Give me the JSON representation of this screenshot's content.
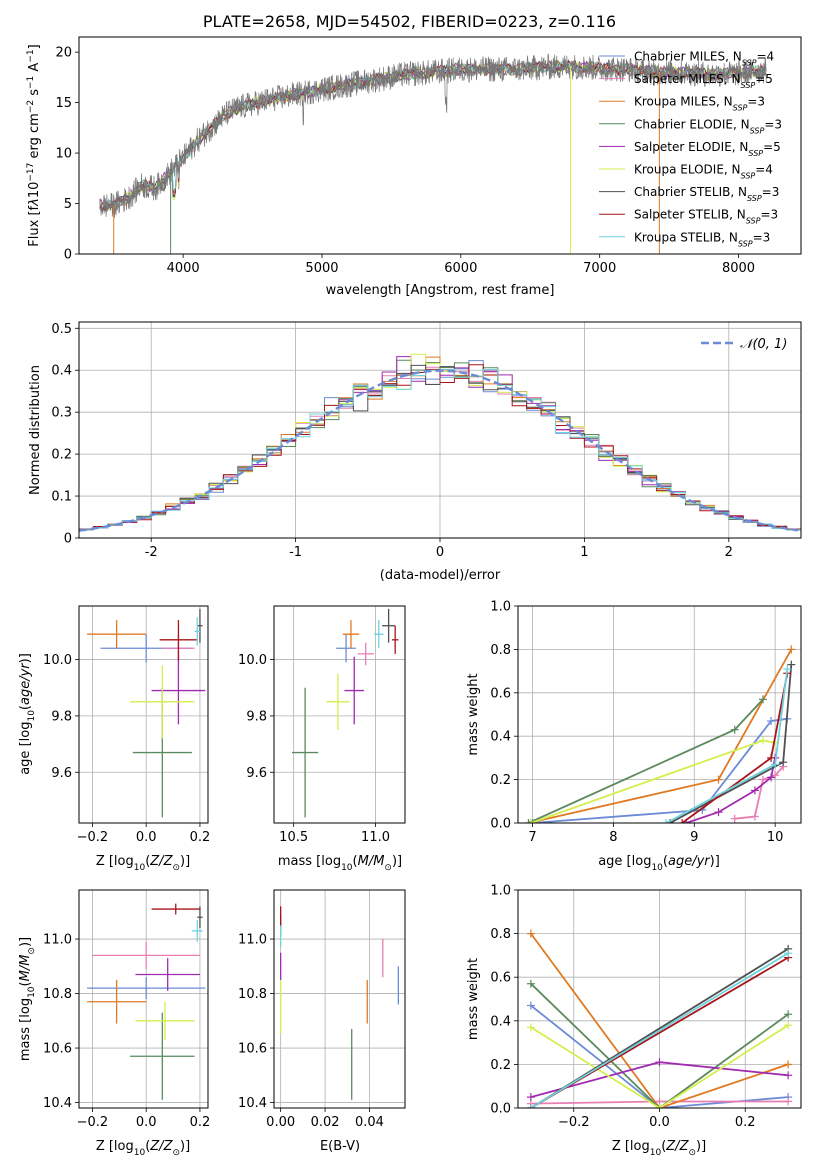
{
  "figure": {
    "title": "PLATE=2658, MJD=54502, FIBERID=0223, z=0.116"
  },
  "colors": {
    "Chabrier MILES": "#6b8bd6",
    "Salpeter MILES": "#e87eb4",
    "Kroupa MILES": "#e07a22",
    "Chabrier ELODIE": "#5a8a5e",
    "Salpeter ELODIE": "#a02ab0",
    "Kroupa ELODIE": "#d4ee4e",
    "Chabrier STELIB": "#505050",
    "Salpeter STELIB": "#a8141a",
    "Kroupa STELIB": "#6fd3dd"
  },
  "chart_data": [
    {
      "id": "spectrum",
      "type": "line",
      "title": "PLATE=2658, MJD=54502, FIBERID=0223, z=0.116",
      "xlabel": "wavelength [Angstrom, rest frame]",
      "ylabel_parts": [
        "Flux [f",
        "λ",
        "10",
        "−17",
        " erg cm",
        "−2",
        " s",
        "−1",
        " A",
        "−1",
        "]"
      ],
      "xlim": [
        3250,
        8450
      ],
      "ylim": [
        0,
        21.5
      ],
      "xticks": [
        4000,
        5000,
        6000,
        7000,
        8000
      ],
      "yticks": [
        0,
        5,
        10,
        15,
        20
      ],
      "grid": false,
      "legend_position": "upper-right",
      "legend": [
        {
          "name": "Chabrier MILES",
          "n": "4"
        },
        {
          "name": "Salpeter MILES",
          "n": "5"
        },
        {
          "name": "Kroupa MILES",
          "n": "3"
        },
        {
          "name": "Chabrier ELODIE",
          "n": "3"
        },
        {
          "name": "Salpeter ELODIE",
          "n": "5"
        },
        {
          "name": "Kroupa ELODIE",
          "n": "4"
        },
        {
          "name": "Chabrier STELIB",
          "n": "3"
        },
        {
          "name": "Salpeter STELIB",
          "n": "3"
        },
        {
          "name": "Kroupa STELIB",
          "n": "3"
        }
      ],
      "series": [
        {
          "name": "data spectrum (grey)",
          "x": [
            3400,
            3500,
            3600,
            3700,
            3800,
            3900,
            4000,
            4100,
            4200,
            4300,
            4400,
            4600,
            4800,
            5000,
            5200,
            5400,
            5600,
            5800,
            6000,
            6200,
            6400,
            6600,
            6800,
            7000,
            7200,
            7400,
            7600,
            7800,
            8000,
            8200
          ],
          "y": [
            4.8,
            4.8,
            5.5,
            6.8,
            6.5,
            8.0,
            9.5,
            11.2,
            12.5,
            13.8,
            14.5,
            15.2,
            15.8,
            16.3,
            16.8,
            17.3,
            17.8,
            18.0,
            18.3,
            18.3,
            18.3,
            18.5,
            18.6,
            18.4,
            18.3,
            18.0,
            18.0,
            17.8,
            17.9,
            18.2
          ]
        }
      ]
    },
    {
      "id": "residuals",
      "type": "histogram",
      "xlabel": "(data-model)/error",
      "ylabel": "Normed distribution",
      "xlim": [
        -2.5,
        2.5
      ],
      "ylim": [
        0,
        0.515
      ],
      "xticks": [
        -2,
        -1,
        0,
        1,
        2
      ],
      "yticks": [
        0.0,
        0.1,
        0.2,
        0.3,
        0.4,
        0.5
      ],
      "grid": true,
      "legend_position": "upper-right",
      "reference_label": "𝒩(0, 1)",
      "reference_color": "#6b8bd6",
      "bin_width": 0.1
    },
    {
      "id": "age_vs_Z",
      "type": "scatter",
      "xlabel": "Z [log10(Z/Z⊙)]",
      "xlabel_parts": [
        "Z [log",
        "10",
        "(",
        "Z/Z",
        "⊙",
        ")]"
      ],
      "ylabel": "age [log10(age/yr)]",
      "ylabel_parts": [
        "age  [log",
        "10",
        "(",
        "age/yr",
        ")]"
      ],
      "xlim": [
        -0.25,
        0.23
      ],
      "ylim": [
        9.42,
        10.19
      ],
      "xticks": [
        -0.2,
        0.0,
        0.2
      ],
      "xtick_labels": [
        "−0.2",
        "0.0",
        "0.2"
      ],
      "yticks": [
        9.6,
        9.8,
        10.0
      ],
      "ytick_labels": [
        "9.6",
        "9.8",
        "10.0"
      ],
      "grid": true,
      "points": [
        {
          "name": "Chabrier MILES",
          "x": 0.0,
          "xerr": 0.17,
          "y": 10.04,
          "yerr": 0.05
        },
        {
          "name": "Salpeter MILES",
          "x": 0.12,
          "xerr": 0.06,
          "y": 10.04,
          "yerr": 0.05
        },
        {
          "name": "Kroupa MILES",
          "x": -0.11,
          "xerr": 0.11,
          "y": 10.09,
          "yerr": 0.05
        },
        {
          "name": "Chabrier ELODIE",
          "x": 0.06,
          "xerr": 0.11,
          "y": 9.67,
          "yerr": 0.23
        },
        {
          "name": "Salpeter ELODIE",
          "x": 0.12,
          "xerr": 0.1,
          "y": 9.89,
          "yerr": 0.12
        },
        {
          "name": "Kroupa ELODIE",
          "x": 0.06,
          "xerr": 0.12,
          "y": 9.85,
          "yerr": 0.13
        },
        {
          "name": "Chabrier STELIB",
          "x": 0.2,
          "xerr": 0.01,
          "y": 10.12,
          "yerr": 0.06
        },
        {
          "name": "Salpeter STELIB",
          "x": 0.12,
          "xerr": 0.07,
          "y": 10.07,
          "yerr": 0.07
        },
        {
          "name": "Kroupa STELIB",
          "x": 0.19,
          "xerr": 0.01,
          "y": 10.1,
          "yerr": 0.05
        }
      ]
    },
    {
      "id": "age_vs_mass",
      "type": "scatter",
      "xlabel": "mass [log10(M/M⊙)]",
      "xlabel_parts": [
        "mass [log",
        "10",
        "(",
        "M/M",
        "⊙",
        ")]"
      ],
      "xlim": [
        10.38,
        11.18
      ],
      "ylim": [
        9.42,
        10.19
      ],
      "xticks": [
        10.5,
        11.0
      ],
      "xtick_labels": [
        "10.5",
        "11.0"
      ],
      "yticks": [
        9.6,
        9.8,
        10.0
      ],
      "ytick_labels": [
        "9.6",
        "9.8",
        "10.0"
      ],
      "grid": true,
      "points": [
        {
          "name": "Chabrier MILES",
          "x": 10.82,
          "xerr": 0.06,
          "y": 10.04,
          "yerr": 0.05
        },
        {
          "name": "Salpeter MILES",
          "x": 10.94,
          "xerr": 0.05,
          "y": 10.02,
          "yerr": 0.04
        },
        {
          "name": "Kroupa MILES",
          "x": 10.85,
          "xerr": 0.05,
          "y": 10.09,
          "yerr": 0.05
        },
        {
          "name": "Chabrier ELODIE",
          "x": 10.57,
          "xerr": 0.08,
          "y": 9.67,
          "yerr": 0.23
        },
        {
          "name": "Salpeter ELODIE",
          "x": 10.87,
          "xerr": 0.06,
          "y": 9.89,
          "yerr": 0.12
        },
        {
          "name": "Kroupa ELODIE",
          "x": 10.77,
          "xerr": 0.07,
          "y": 9.85,
          "yerr": 0.1
        },
        {
          "name": "Chabrier STELIB",
          "x": 11.08,
          "xerr": 0.04,
          "y": 10.12,
          "yerr": 0.06
        },
        {
          "name": "Salpeter STELIB",
          "x": 11.12,
          "xerr": 0.02,
          "y": 10.07,
          "yerr": 0.05
        },
        {
          "name": "Kroupa STELIB",
          "x": 11.02,
          "xerr": 0.03,
          "y": 10.09,
          "yerr": 0.05
        }
      ]
    },
    {
      "id": "massweight_vs_age",
      "type": "line",
      "xlabel": "age [log10(age/yr)]",
      "xlabel_parts": [
        "age  [log",
        "10",
        "(",
        "age/yr",
        ")]"
      ],
      "ylabel": "mass weight",
      "xlim": [
        6.82,
        10.32
      ],
      "ylim": [
        0,
        1.0
      ],
      "xticks": [
        7,
        8,
        9,
        10
      ],
      "xtick_labels": [
        "7",
        "8",
        "9",
        "10"
      ],
      "yticks": [
        0.0,
        0.2,
        0.4,
        0.6,
        0.8,
        1.0
      ],
      "ytick_labels": [
        "0.0",
        "0.2",
        "0.4",
        "0.6",
        "0.8",
        "1.0"
      ],
      "grid": true,
      "series": [
        {
          "name": "Chabrier MILES",
          "x": [
            7.0,
            9.1,
            9.95,
            10.15
          ],
          "y": [
            0.0,
            0.06,
            0.47,
            0.48
          ]
        },
        {
          "name": "Salpeter MILES",
          "x": [
            9.5,
            9.75,
            9.85,
            10.0,
            10.1
          ],
          "y": [
            0.02,
            0.03,
            0.2,
            0.22,
            0.26
          ]
        },
        {
          "name": "Kroupa MILES",
          "x": [
            6.95,
            9.3,
            10.2
          ],
          "y": [
            0.0,
            0.2,
            0.8
          ]
        },
        {
          "name": "Chabrier ELODIE",
          "x": [
            6.95,
            9.5,
            9.85
          ],
          "y": [
            0.0,
            0.43,
            0.57
          ]
        },
        {
          "name": "Salpeter ELODIE",
          "x": [
            8.9,
            9.3,
            9.75,
            9.95,
            10.0
          ],
          "y": [
            0.0,
            0.05,
            0.15,
            0.21,
            0.3
          ]
        },
        {
          "name": "Kroupa ELODIE",
          "x": [
            6.98,
            9.85,
            10.0
          ],
          "y": [
            0.0,
            0.38,
            0.37
          ]
        },
        {
          "name": "Chabrier STELIB",
          "x": [
            8.7,
            10.1,
            10.2
          ],
          "y": [
            0.0,
            0.28,
            0.73
          ]
        },
        {
          "name": "Salpeter STELIB",
          "x": [
            8.85,
            9.95,
            10.15
          ],
          "y": [
            0.0,
            0.3,
            0.69
          ]
        },
        {
          "name": "Kroupa STELIB",
          "x": [
            8.65,
            10.0,
            10.15
          ],
          "y": [
            0.0,
            0.27,
            0.71
          ]
        }
      ]
    },
    {
      "id": "mass_vs_Z",
      "type": "scatter",
      "xlabel": "Z [log10(Z/Z⊙)]",
      "xlabel_parts": [
        "Z [log",
        "10",
        "(",
        "Z/Z",
        "⊙",
        ")]"
      ],
      "ylabel": "mass [log10(M/M⊙)]",
      "ylabel_parts": [
        "mass [log",
        "10",
        "(",
        "M/M",
        "⊙",
        ")]"
      ],
      "xlim": [
        -0.25,
        0.23
      ],
      "ylim": [
        10.38,
        11.18
      ],
      "xticks": [
        -0.2,
        0.0,
        0.2
      ],
      "xtick_labels": [
        "−0.2",
        "0.0",
        "0.2"
      ],
      "yticks": [
        10.4,
        10.6,
        10.8,
        11.0
      ],
      "ytick_labels": [
        "10.4",
        "10.6",
        "10.8",
        "11.0"
      ],
      "grid": true,
      "points": [
        {
          "name": "Chabrier MILES",
          "x": 0.0,
          "xerr": 0.22,
          "y": 10.82,
          "yerr": 0.04
        },
        {
          "name": "Salpeter MILES",
          "x": 0.0,
          "xerr": 0.2,
          "y": 10.94,
          "yerr": 0.05
        },
        {
          "name": "Kroupa MILES",
          "x": -0.11,
          "xerr": 0.11,
          "y": 10.77,
          "yerr": 0.08
        },
        {
          "name": "Chabrier ELODIE",
          "x": 0.06,
          "xerr": 0.12,
          "y": 10.57,
          "yerr": 0.16
        },
        {
          "name": "Salpeter ELODIE",
          "x": 0.08,
          "xerr": 0.12,
          "y": 10.87,
          "yerr": 0.06
        },
        {
          "name": "Kroupa ELODIE",
          "x": 0.07,
          "xerr": 0.11,
          "y": 10.7,
          "yerr": 0.07
        },
        {
          "name": "Chabrier STELIB",
          "x": 0.2,
          "xerr": 0.01,
          "y": 11.08,
          "yerr": 0.04
        },
        {
          "name": "Salpeter STELIB",
          "x": 0.11,
          "xerr": 0.09,
          "y": 11.11,
          "yerr": 0.02
        },
        {
          "name": "Kroupa STELIB",
          "x": 0.19,
          "xerr": 0.02,
          "y": 11.03,
          "yerr": 0.04
        }
      ]
    },
    {
      "id": "mass_vs_EBV",
      "type": "scatter",
      "xlabel": "E(B-V)",
      "xlim": [
        -0.003,
        0.056
      ],
      "ylim": [
        10.38,
        11.18
      ],
      "xticks": [
        0.0,
        0.02,
        0.04
      ],
      "xtick_labels": [
        "0.00",
        "0.02",
        "0.04"
      ],
      "yticks": [
        10.4,
        10.6,
        10.8,
        11.0
      ],
      "ytick_labels": [
        "10.4",
        "10.6",
        "10.8",
        "11.0"
      ],
      "grid": true,
      "points": [
        {
          "name": "Chabrier MILES",
          "x": 0.053,
          "xerr": 0.0,
          "y": 10.83,
          "yerr": 0.07
        },
        {
          "name": "Salpeter MILES",
          "x": 0.046,
          "xerr": 0.0,
          "y": 10.93,
          "yerr": 0.07
        },
        {
          "name": "Kroupa MILES",
          "x": 0.039,
          "xerr": 0.0,
          "y": 10.77,
          "yerr": 0.08
        },
        {
          "name": "Chabrier ELODIE",
          "x": 0.032,
          "xerr": 0.0,
          "y": 10.54,
          "yerr": 0.13
        },
        {
          "name": "Salpeter ELODIE",
          "x": 0.0,
          "xerr": 0.0,
          "y": 10.9,
          "yerr": 0.05
        },
        {
          "name": "Kroupa ELODIE",
          "x": 0.0,
          "xerr": 0.0,
          "y": 10.75,
          "yerr": 0.1
        },
        {
          "name": "Chabrier STELIB",
          "x": 0.0,
          "xerr": 0.0,
          "y": 11.05,
          "yerr": 0.04
        },
        {
          "name": "Salpeter STELIB",
          "x": 0.0,
          "xerr": 0.0,
          "y": 11.08,
          "yerr": 0.04
        },
        {
          "name": "Kroupa STELIB",
          "x": 0.0,
          "xerr": 0.0,
          "y": 11.01,
          "yerr": 0.04
        }
      ]
    },
    {
      "id": "massweight_vs_Z",
      "type": "line",
      "xlabel": "Z [log10(Z/Z⊙)]",
      "xlabel_parts": [
        "Z [log",
        "10",
        "(",
        "Z/Z",
        "⊙",
        ")]"
      ],
      "ylabel": "mass weight",
      "xlim": [
        -0.33,
        0.33
      ],
      "ylim": [
        0,
        1.0
      ],
      "xticks": [
        -0.2,
        0.0,
        0.2
      ],
      "xtick_labels": [
        "−0.2",
        "0.0",
        "0.2"
      ],
      "yticks": [
        0.0,
        0.2,
        0.4,
        0.6,
        0.8,
        1.0
      ],
      "ytick_labels": [
        "0.0",
        "0.2",
        "0.4",
        "0.6",
        "0.8",
        "1.0"
      ],
      "grid": true,
      "series": [
        {
          "name": "Chabrier MILES",
          "x": [
            -0.3,
            0.0,
            0.3
          ],
          "y": [
            0.47,
            0.0,
            0.05
          ]
        },
        {
          "name": "Salpeter MILES",
          "x": [
            -0.3,
            0.0,
            0.3
          ],
          "y": [
            0.02,
            0.03,
            0.03
          ]
        },
        {
          "name": "Kroupa MILES",
          "x": [
            -0.3,
            0.0,
            0.3
          ],
          "y": [
            0.8,
            0.0,
            0.2
          ]
        },
        {
          "name": "Chabrier ELODIE",
          "x": [
            -0.3,
            0.0,
            0.3
          ],
          "y": [
            0.57,
            0.0,
            0.43
          ]
        },
        {
          "name": "Salpeter ELODIE",
          "x": [
            -0.3,
            0.0,
            0.3
          ],
          "y": [
            0.05,
            0.21,
            0.15
          ]
        },
        {
          "name": "Kroupa ELODIE",
          "x": [
            -0.3,
            0.0,
            0.3
          ],
          "y": [
            0.37,
            0.0,
            0.38
          ]
        },
        {
          "name": "Chabrier STELIB",
          "x": [
            -0.3,
            0.3
          ],
          "y": [
            0.0,
            0.73
          ]
        },
        {
          "name": "Salpeter STELIB",
          "x": [
            -0.3,
            0.3
          ],
          "y": [
            0.0,
            0.69
          ]
        },
        {
          "name": "Kroupa STELIB",
          "x": [
            -0.3,
            0.3
          ],
          "y": [
            0.0,
            0.71
          ]
        }
      ]
    }
  ]
}
